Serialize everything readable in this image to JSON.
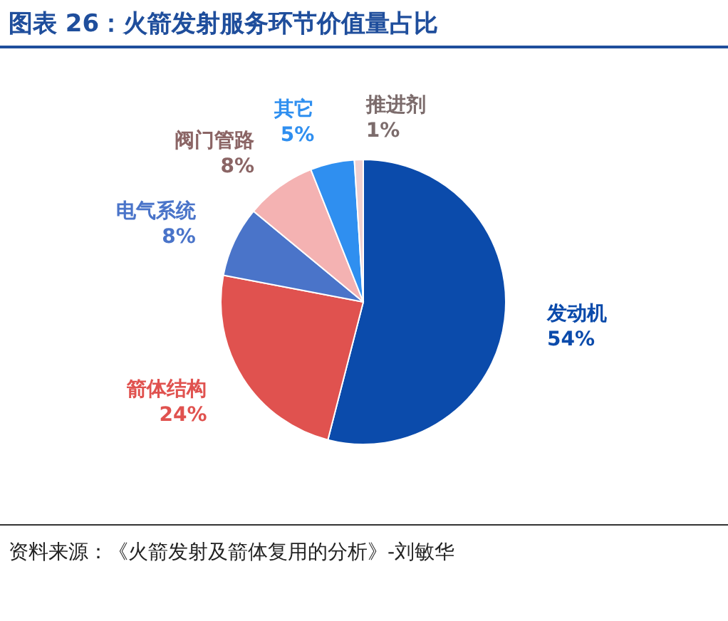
{
  "chart_data": {
    "type": "pie",
    "title": "图表 26：火箭发射服务环节价值量占比",
    "categories": [
      "发动机",
      "箭体结构",
      "电气系统",
      "阀门管路",
      "其它",
      "推进剂"
    ],
    "values": [
      54,
      24,
      8,
      8,
      5,
      1
    ],
    "colors": [
      "#0b4bab",
      "#e0524f",
      "#4a74c9",
      "#f4b2b2",
      "#2f8ff0",
      "#f0d0d0"
    ],
    "value_labels": [
      "54%",
      "24%",
      "8%",
      "8%",
      "5%",
      "1%"
    ],
    "annotations": [
      "资料来源：《火箭发射及箭体复用的分析》-刘敏华"
    ]
  }
}
